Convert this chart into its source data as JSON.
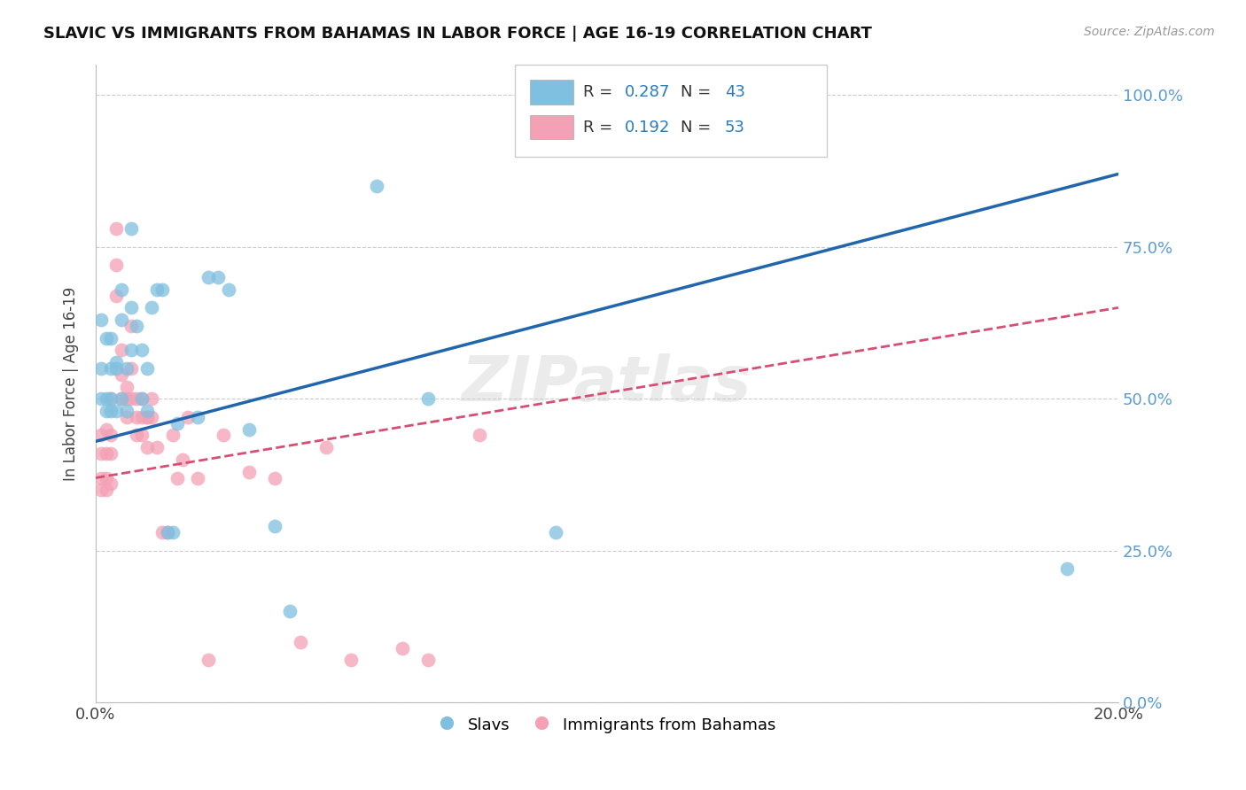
{
  "title": "SLAVIC VS IMMIGRANTS FROM BAHAMAS IN LABOR FORCE | AGE 16-19 CORRELATION CHART",
  "source": "Source: ZipAtlas.com",
  "ylabel": "In Labor Force | Age 16-19",
  "xlim": [
    0.0,
    0.2
  ],
  "ylim": [
    0.0,
    1.05
  ],
  "yticks": [
    0.0,
    0.25,
    0.5,
    0.75,
    1.0
  ],
  "ytick_labels": [
    "0.0%",
    "25.0%",
    "50.0%",
    "75.0%",
    "100.0%"
  ],
  "xticks": [
    0.0,
    0.05,
    0.1,
    0.15,
    0.2
  ],
  "xtick_labels": [
    "0.0%",
    "",
    "",
    "",
    "20.0%"
  ],
  "legend_r_blue": "0.287",
  "legend_n_blue": "43",
  "legend_r_pink": "0.192",
  "legend_n_pink": "53",
  "legend_label_blue": "Slavs",
  "legend_label_pink": "Immigrants from Bahamas",
  "blue_color": "#7fbfdf",
  "pink_color": "#f4a0b5",
  "blue_line_color": "#2166ac",
  "pink_line_color": "#d64f73",
  "watermark": "ZIPatlas",
  "blue_x": [
    0.001,
    0.001,
    0.002,
    0.002,
    0.003,
    0.003,
    0.003,
    0.004,
    0.004,
    0.005,
    0.005,
    0.006,
    0.006,
    0.007,
    0.007,
    0.008,
    0.009,
    0.009,
    0.01,
    0.01,
    0.011,
    0.012,
    0.013,
    0.014,
    0.015,
    0.016,
    0.02,
    0.022,
    0.024,
    0.026,
    0.035,
    0.038,
    0.055,
    0.065,
    0.09,
    0.19,
    0.001,
    0.002,
    0.003,
    0.004,
    0.005,
    0.007,
    0.03
  ],
  "blue_y": [
    0.5,
    0.55,
    0.6,
    0.48,
    0.5,
    0.55,
    0.48,
    0.56,
    0.48,
    0.63,
    0.5,
    0.55,
    0.48,
    0.65,
    0.58,
    0.62,
    0.5,
    0.58,
    0.55,
    0.48,
    0.65,
    0.68,
    0.68,
    0.28,
    0.28,
    0.46,
    0.47,
    0.7,
    0.7,
    0.68,
    0.29,
    0.15,
    0.85,
    0.5,
    0.28,
    0.22,
    0.63,
    0.5,
    0.6,
    0.55,
    0.68,
    0.78,
    0.45
  ],
  "pink_x": [
    0.001,
    0.001,
    0.001,
    0.001,
    0.002,
    0.002,
    0.002,
    0.003,
    0.003,
    0.003,
    0.004,
    0.004,
    0.005,
    0.005,
    0.006,
    0.006,
    0.007,
    0.007,
    0.008,
    0.008,
    0.009,
    0.009,
    0.01,
    0.01,
    0.011,
    0.011,
    0.012,
    0.013,
    0.014,
    0.015,
    0.016,
    0.017,
    0.018,
    0.02,
    0.022,
    0.03,
    0.04,
    0.05,
    0.06,
    0.075,
    0.002,
    0.003,
    0.004,
    0.005,
    0.006,
    0.007,
    0.008,
    0.009,
    0.01,
    0.025,
    0.035,
    0.045,
    0.065
  ],
  "pink_y": [
    0.44,
    0.41,
    0.37,
    0.35,
    0.45,
    0.41,
    0.37,
    0.5,
    0.44,
    0.41,
    0.78,
    0.72,
    0.54,
    0.5,
    0.5,
    0.47,
    0.55,
    0.5,
    0.47,
    0.44,
    0.5,
    0.44,
    0.47,
    0.42,
    0.47,
    0.5,
    0.42,
    0.28,
    0.28,
    0.44,
    0.37,
    0.4,
    0.47,
    0.37,
    0.07,
    0.38,
    0.1,
    0.07,
    0.09,
    0.44,
    0.35,
    0.36,
    0.67,
    0.58,
    0.52,
    0.62,
    0.5,
    0.47,
    0.47,
    0.44,
    0.37,
    0.42,
    0.07
  ]
}
